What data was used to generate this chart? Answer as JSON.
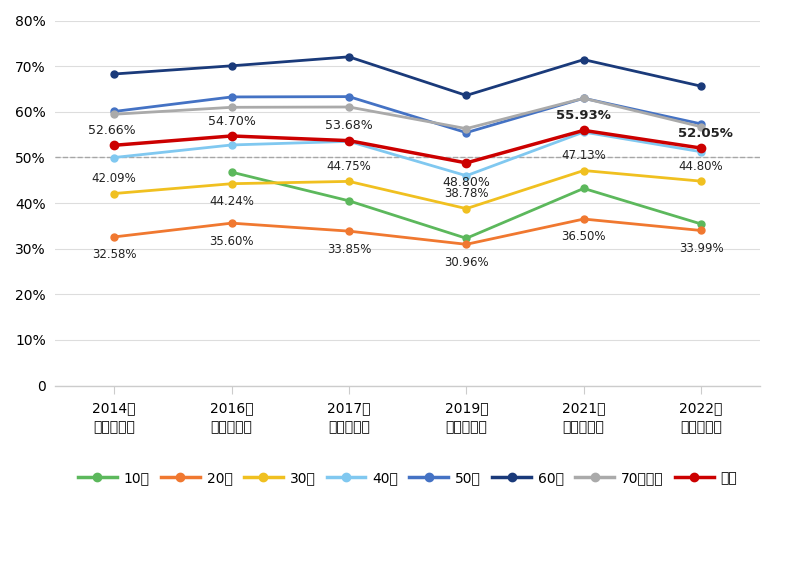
{
  "x_labels": [
    "2014年\n（衆院選）",
    "2016年\n（参院選）",
    "2017年\n（衆院選）",
    "2019年\n（参院選）",
    "2021年\n（衆院選）",
    "2022年\n（参院選）"
  ],
  "x_positions": [
    0,
    1,
    2,
    3,
    4,
    5
  ],
  "series": {
    "10代": {
      "values": [
        null,
        46.78,
        40.49,
        32.28,
        43.21,
        35.42
      ],
      "color": "#5cb85c",
      "linewidth": 2.0,
      "marker": "o",
      "markersize": 5
    },
    "20代": {
      "values": [
        32.58,
        35.6,
        33.85,
        30.96,
        36.5,
        33.99
      ],
      "color": "#f07830",
      "linewidth": 2.0,
      "marker": "o",
      "markersize": 5
    },
    "30代": {
      "values": [
        42.09,
        44.24,
        44.75,
        38.78,
        47.13,
        44.8
      ],
      "color": "#f0c020",
      "linewidth": 2.0,
      "marker": "o",
      "markersize": 5
    },
    "40代": {
      "values": [
        49.98,
        52.73,
        53.52,
        45.99,
        55.56,
        51.24
      ],
      "color": "#80c8f0",
      "linewidth": 2.0,
      "marker": "o",
      "markersize": 5
    },
    "50代": {
      "values": [
        60.07,
        63.25,
        63.32,
        55.43,
        62.96,
        57.34
      ],
      "color": "#4472c4",
      "linewidth": 2.0,
      "marker": "o",
      "markersize": 5
    },
    "60代": {
      "values": [
        68.28,
        70.07,
        72.04,
        63.58,
        71.43,
        65.61
      ],
      "color": "#1a3a7a",
      "linewidth": 2.0,
      "marker": "o",
      "markersize": 5
    },
    "70代以上": {
      "values": [
        59.46,
        60.98,
        61.05,
        56.31,
        62.96,
        56.72
      ],
      "color": "#aaaaaa",
      "linewidth": 2.0,
      "marker": "o",
      "markersize": 5
    },
    "全体": {
      "values": [
        52.66,
        54.7,
        53.68,
        48.8,
        55.93,
        52.05
      ],
      "color": "#cc0000",
      "linewidth": 2.5,
      "marker": "o",
      "markersize": 6
    }
  },
  "ann_zentai": {
    "indices": [
      0,
      1,
      2,
      3,
      4,
      5
    ],
    "values": [
      52.66,
      54.7,
      53.68,
      48.8,
      55.93,
      52.05
    ],
    "bold_indices": [
      4,
      5
    ],
    "labels": [
      "52.66%",
      "54.70%",
      "53.68%",
      "48.80%",
      "55.93%",
      "52.05%"
    ],
    "offsets_y": [
      1.8,
      1.8,
      1.8,
      -2.8,
      1.8,
      1.8
    ],
    "offsets_x": [
      -0.02,
      0.0,
      0.0,
      0.0,
      0.0,
      0.04
    ]
  },
  "ann_20dai": {
    "indices": [
      0,
      1,
      2,
      3,
      4,
      5
    ],
    "values": [
      32.58,
      35.6,
      33.85,
      30.96,
      36.5,
      33.99
    ],
    "labels": [
      "32.58%",
      "35.60%",
      "33.85%",
      "30.96%",
      "36.50%",
      "33.99%"
    ],
    "offsets_y": [
      -2.5,
      -2.5,
      -2.5,
      -2.5,
      -2.5,
      -2.5
    ],
    "offsets_x": [
      0.0,
      0.0,
      0.0,
      0.0,
      0.0,
      0.0
    ]
  },
  "ann_30dai": {
    "indices": [
      0,
      1,
      2,
      3,
      4,
      5
    ],
    "values": [
      42.09,
      44.24,
      44.75,
      38.78,
      47.13,
      44.8
    ],
    "labels": [
      "42.09%",
      "44.24%",
      "44.75%",
      "38.78%",
      "47.13%",
      "44.80%"
    ],
    "offsets_y": [
      1.8,
      -2.5,
      1.8,
      1.8,
      1.8,
      1.8
    ],
    "offsets_x": [
      0.0,
      0.0,
      0.0,
      0.0,
      0.0,
      0.0
    ]
  },
  "ylim": [
    0,
    80
  ],
  "yticks": [
    0,
    10,
    20,
    30,
    40,
    50,
    60,
    70,
    80
  ],
  "ytick_labels": [
    "0",
    "10%",
    "20%",
    "30%",
    "40%",
    "50%",
    "60%",
    "70%",
    "80%"
  ],
  "reference_line_y": 50,
  "background_color": "#ffffff",
  "grid_color": "#dddddd",
  "legend_order": [
    "10代",
    "20代",
    "30代",
    "40代",
    "50代",
    "60代",
    "70代以上",
    "全体"
  ]
}
